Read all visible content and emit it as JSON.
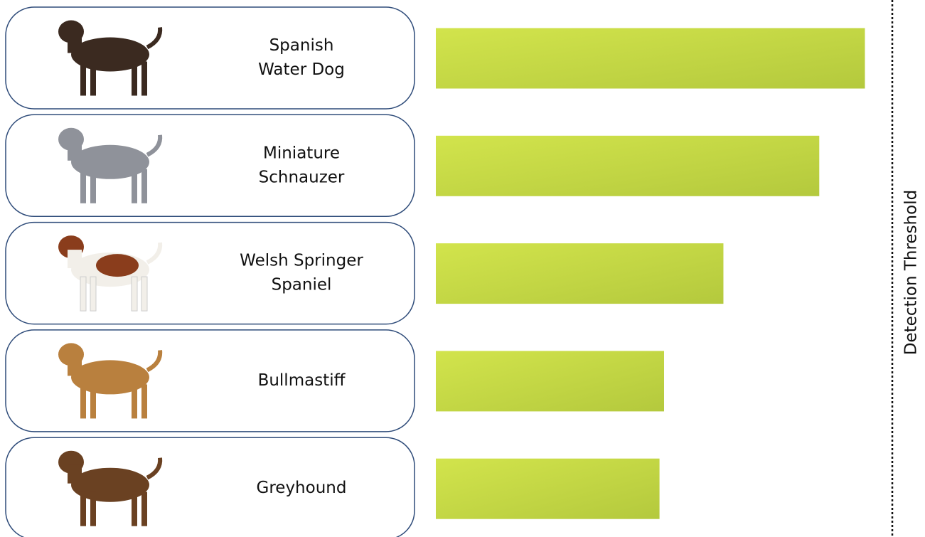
{
  "chart_data": {
    "type": "bar",
    "categories": [
      [
        "Spanish",
        "Water Dog"
      ],
      [
        "Miniature",
        "Schnauzer"
      ],
      [
        "Welsh Springer",
        "Spaniel"
      ],
      [
        "Bullmastiff"
      ],
      [
        "Greyhound"
      ]
    ],
    "values": [
      0.94,
      0.84,
      0.63,
      0.5,
      0.49
    ],
    "xlim": [
      0,
      1
    ],
    "threshold": 1,
    "threshold_label": "Detection Threshold",
    "color": "#c4d944"
  }
}
